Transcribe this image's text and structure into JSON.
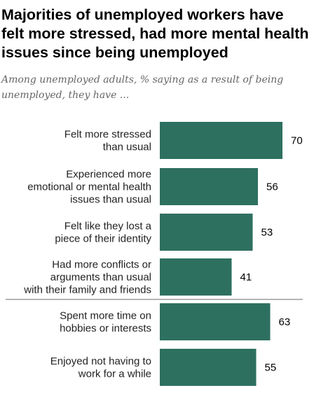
{
  "title": "Majorities of unemployed workers have felt more stressed, had more mental health issues since being unemployed",
  "subtitle": "Among unemployed adults, % saying as a result of being unemployed, they have ...",
  "chart_data": {
    "type": "bar",
    "orientation": "horizontal",
    "categories": [
      "Felt more stressed than usual",
      "Experienced more emotional or mental health issues than usual",
      "Felt like they lost a piece of their identity",
      "Had more conflicts or arguments than usual with their family and friends",
      "Spent more time on hobbies or interests",
      "Enjoyed not having to work for a while"
    ],
    "category_lines": [
      [
        "Felt more stressed",
        "than usual"
      ],
      [
        "Experienced more",
        "emotional or mental health",
        "issues than usual"
      ],
      [
        "Felt like they lost a",
        "piece of their identity"
      ],
      [
        "Had more conflicts or",
        "arguments than usual",
        "with their family and friends"
      ],
      [
        "Spent more time on",
        "hobbies or interests"
      ],
      [
        "Enjoyed not having to",
        "work for a while"
      ]
    ],
    "values": [
      70,
      56,
      53,
      41,
      63,
      55
    ],
    "value_labels": [
      "70",
      "56",
      "53",
      "41",
      "63",
      "55"
    ],
    "divider_after_index": 3,
    "xlim": [
      0,
      100
    ],
    "bar_color": "#2e7060",
    "divider_color": "#999999",
    "grid": false
  }
}
